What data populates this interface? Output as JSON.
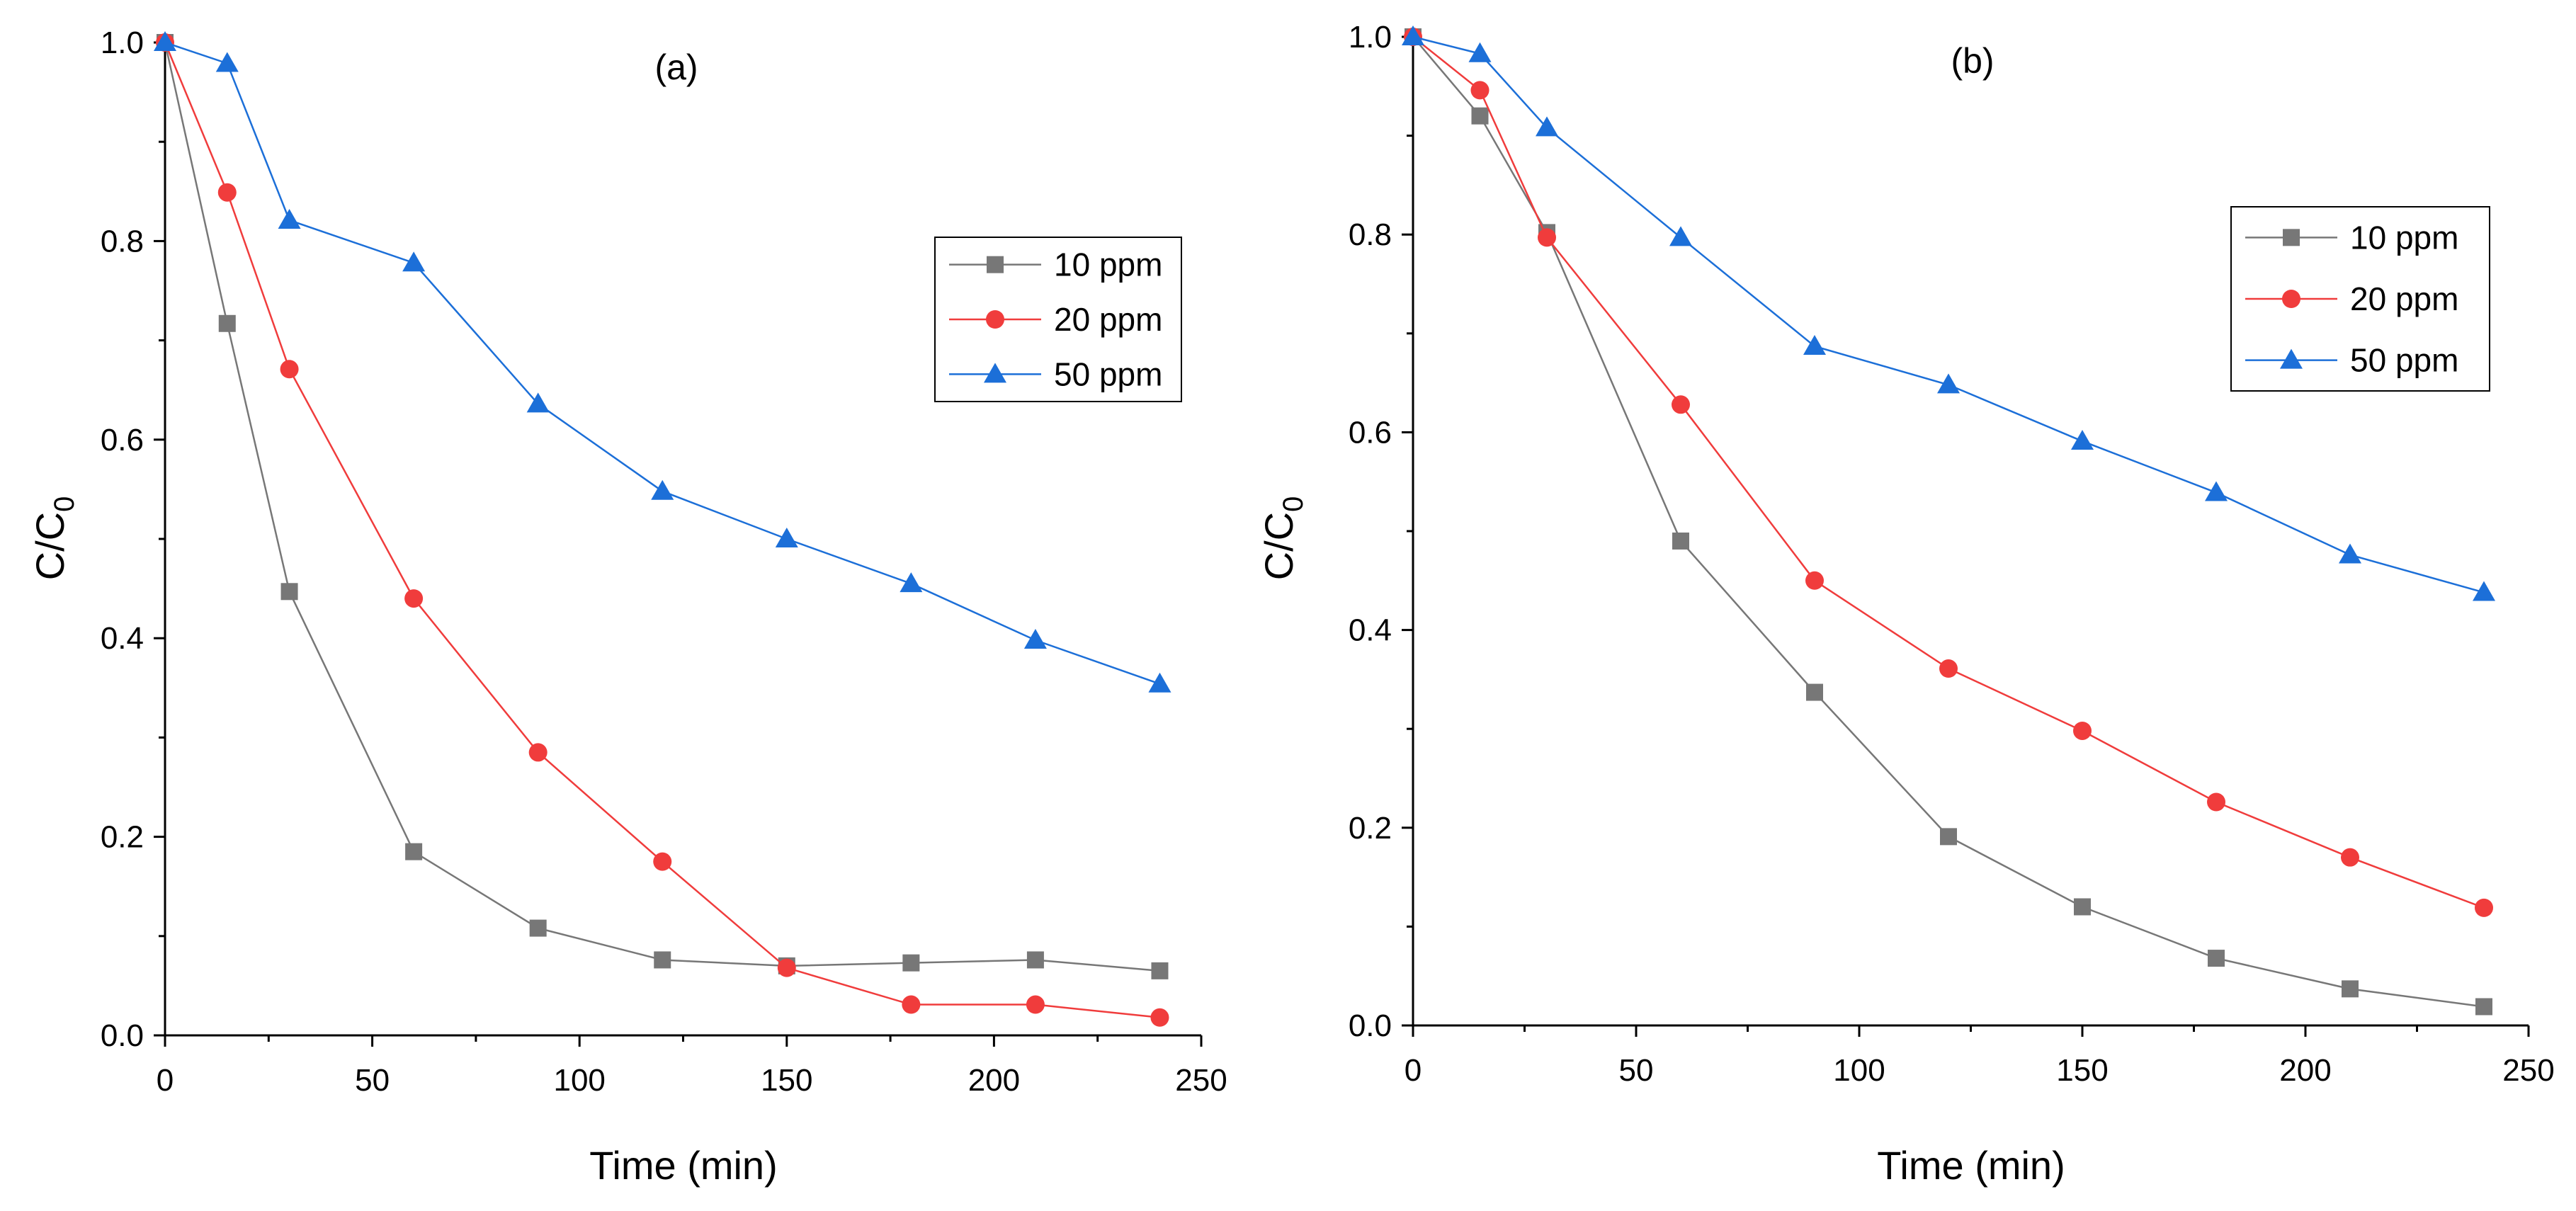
{
  "chart_data": [
    {
      "type": "line",
      "panel_label": "(a)",
      "xlabel": "Time (min)",
      "ylabel_main": "C/C",
      "ylabel_sub": "0",
      "xlim": [
        0,
        250
      ],
      "ylim": [
        0,
        1.0
      ],
      "xticks": [
        "0",
        "50",
        "100",
        "150",
        "200",
        "250"
      ],
      "yticks": [
        "0.0",
        "0.2",
        "0.4",
        "0.6",
        "0.8",
        "1.0"
      ],
      "legend_position": "upper-right",
      "series": [
        {
          "name": "10 ppm",
          "color": "#777777",
          "marker": "square",
          "x": [
            0,
            15,
            30,
            60,
            90,
            120,
            150,
            180,
            210,
            240
          ],
          "y": [
            1.0,
            0.717,
            0.447,
            0.185,
            0.108,
            0.076,
            0.07,
            0.073,
            0.076,
            0.065
          ]
        },
        {
          "name": "20 ppm",
          "color": "#f03c3c",
          "marker": "circle",
          "x": [
            0,
            15,
            30,
            60,
            90,
            120,
            150,
            180,
            210,
            240
          ],
          "y": [
            1.0,
            0.849,
            0.671,
            0.44,
            0.285,
            0.175,
            0.068,
            0.031,
            0.031,
            0.018
          ]
        },
        {
          "name": "50 ppm",
          "color": "#1c6fd8",
          "marker": "triangle",
          "x": [
            0,
            15,
            30,
            60,
            90,
            120,
            150,
            180,
            210,
            240
          ],
          "y": [
            1.0,
            0.979,
            0.821,
            0.778,
            0.636,
            0.548,
            0.5,
            0.455,
            0.398,
            0.354
          ]
        }
      ]
    },
    {
      "type": "line",
      "panel_label": "(b)",
      "xlabel": "Time (min)",
      "ylabel_main": "C/C",
      "ylabel_sub": "0",
      "xlim": [
        0,
        250
      ],
      "ylim": [
        0,
        1.0
      ],
      "xticks": [
        "0",
        "50",
        "100",
        "150",
        "200",
        "250"
      ],
      "yticks": [
        "0.0",
        "0.2",
        "0.4",
        "0.6",
        "0.8",
        "1.0"
      ],
      "legend_position": "upper-right",
      "series": [
        {
          "name": "10 ppm",
          "color": "#777777",
          "marker": "square",
          "x": [
            0,
            15,
            30,
            60,
            90,
            120,
            150,
            180,
            210,
            240
          ],
          "y": [
            1.0,
            0.92,
            0.802,
            0.49,
            0.337,
            0.191,
            0.12,
            0.068,
            0.037,
            0.019
          ]
        },
        {
          "name": "20 ppm",
          "color": "#f03c3c",
          "marker": "circle",
          "x": [
            0,
            15,
            30,
            60,
            90,
            120,
            150,
            180,
            210,
            240
          ],
          "y": [
            1.0,
            0.946,
            0.797,
            0.628,
            0.45,
            0.361,
            0.298,
            0.226,
            0.17,
            0.119
          ]
        },
        {
          "name": "50 ppm",
          "color": "#1c6fd8",
          "marker": "triangle",
          "x": [
            0,
            15,
            30,
            60,
            90,
            120,
            150,
            180,
            210,
            240
          ],
          "y": [
            1.0,
            0.983,
            0.908,
            0.797,
            0.687,
            0.648,
            0.591,
            0.539,
            0.476,
            0.438
          ]
        }
      ]
    }
  ]
}
